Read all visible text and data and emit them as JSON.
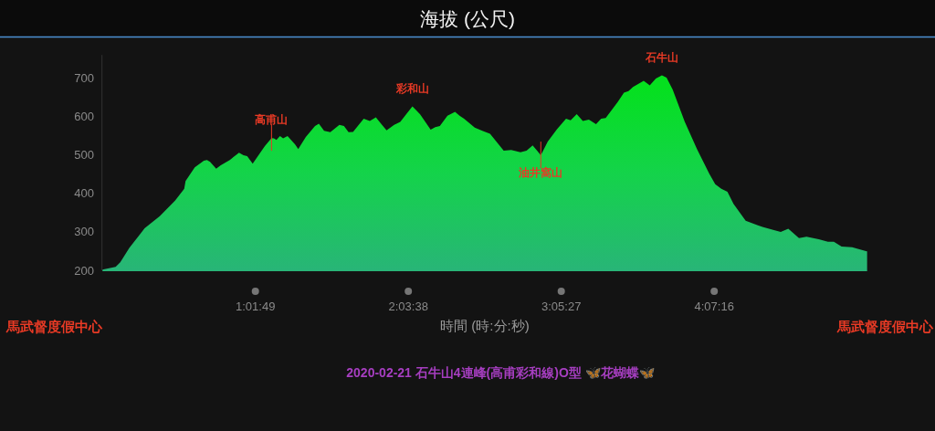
{
  "chart_data": {
    "type": "area",
    "title": "海拔 (公尺)",
    "subtitle": "2020-02-21 石牛山4連峰(高甫彩和線)O型 🦋花蝴蝶🦋",
    "xlabel": "時間 (時:分:秒)",
    "x": [
      0,
      0.089,
      0.12,
      0.181,
      0.284,
      0.386,
      0.489,
      0.551,
      0.56,
      0.622,
      0.683,
      0.704,
      0.725,
      0.766,
      0.797,
      0.858,
      0.92,
      0.95,
      0.975,
      1.012,
      1.094,
      1.139,
      1.155,
      1.172,
      1.196,
      1.217,
      1.247,
      1.298,
      1.319,
      1.37,
      1.432,
      1.458,
      1.493,
      1.535,
      1.596,
      1.627,
      1.658,
      1.688,
      1.76,
      1.801,
      1.842,
      1.883,
      1.914,
      1.965,
      2.006,
      2.088,
      2.139,
      2.211,
      2.242,
      2.273,
      2.324,
      2.375,
      2.406,
      2.436,
      2.508,
      2.559,
      2.611,
      2.703,
      2.754,
      2.816,
      2.857,
      2.898,
      2.928,
      2.953,
      3.0,
      3.062,
      3.123,
      3.154,
      3.195,
      3.236,
      3.277,
      3.325,
      3.359,
      3.39,
      3.472,
      3.513,
      3.544,
      3.574,
      3.646,
      3.687,
      3.728,
      3.769,
      3.8,
      3.841,
      3.923,
      4.005,
      4.087,
      4.128,
      4.169,
      4.21,
      4.251,
      4.333,
      4.415,
      4.446,
      4.518,
      4.569,
      4.62,
      4.692,
      4.743,
      4.825,
      4.887,
      4.927,
      4.979,
      5.05,
      5.143,
      5.151
    ],
    "series": [
      {
        "color": "#05e01f",
        "values": [
          202,
          209,
          221,
          258,
          309,
          341,
          381,
          412,
          432,
          468,
          485,
          487,
          482,
          464,
          473,
          487,
          506,
          499,
          497,
          477,
          523,
          544,
          543,
          539,
          549,
          543,
          549,
          527,
          515,
          547,
          575,
          581,
          563,
          559,
          578,
          575,
          559,
          560,
          594,
          588,
          598,
          578,
          564,
          578,
          586,
          626,
          606,
          566,
          572,
          575,
          602,
          612,
          602,
          594,
          571,
          563,
          555,
          511,
          513,
          507,
          511,
          525,
          511,
          499,
          535,
          567,
          594,
          590,
          606,
          588,
          592,
          580,
          594,
          596,
          638,
          662,
          666,
          677,
          693,
          681,
          699,
          707,
          701,
          670,
          586,
          515,
          452,
          424,
          412,
          404,
          373,
          329,
          317,
          313,
          305,
          300,
          308,
          284,
          287,
          281,
          274,
          274,
          262,
          260,
          250,
          249
        ]
      }
    ],
    "xlim": [
      0,
      5.151389
    ],
    "xticks": [
      {
        "value": 1.030278,
        "label": "1:01:49"
      },
      {
        "value": 2.060556,
        "label": "2:03:38"
      },
      {
        "value": 3.090833,
        "label": "3:05:27"
      },
      {
        "value": 4.121111,
        "label": "4:07:16"
      }
    ],
    "ylim": [
      200,
      760
    ],
    "yticks": [
      200,
      300,
      400,
      500,
      600,
      700
    ],
    "annotations": [
      {
        "text": "高甫山",
        "x": 1.139,
        "y": 544
      },
      {
        "text": "彩和山",
        "x": 2.088,
        "y": 626
      },
      {
        "text": "油井窩山",
        "x": 2.953,
        "y": 499
      },
      {
        "text": "石牛山",
        "x": 3.769,
        "y": 707
      },
      "馬武督度假中心",
      "馬武督度假中心"
    ]
  }
}
